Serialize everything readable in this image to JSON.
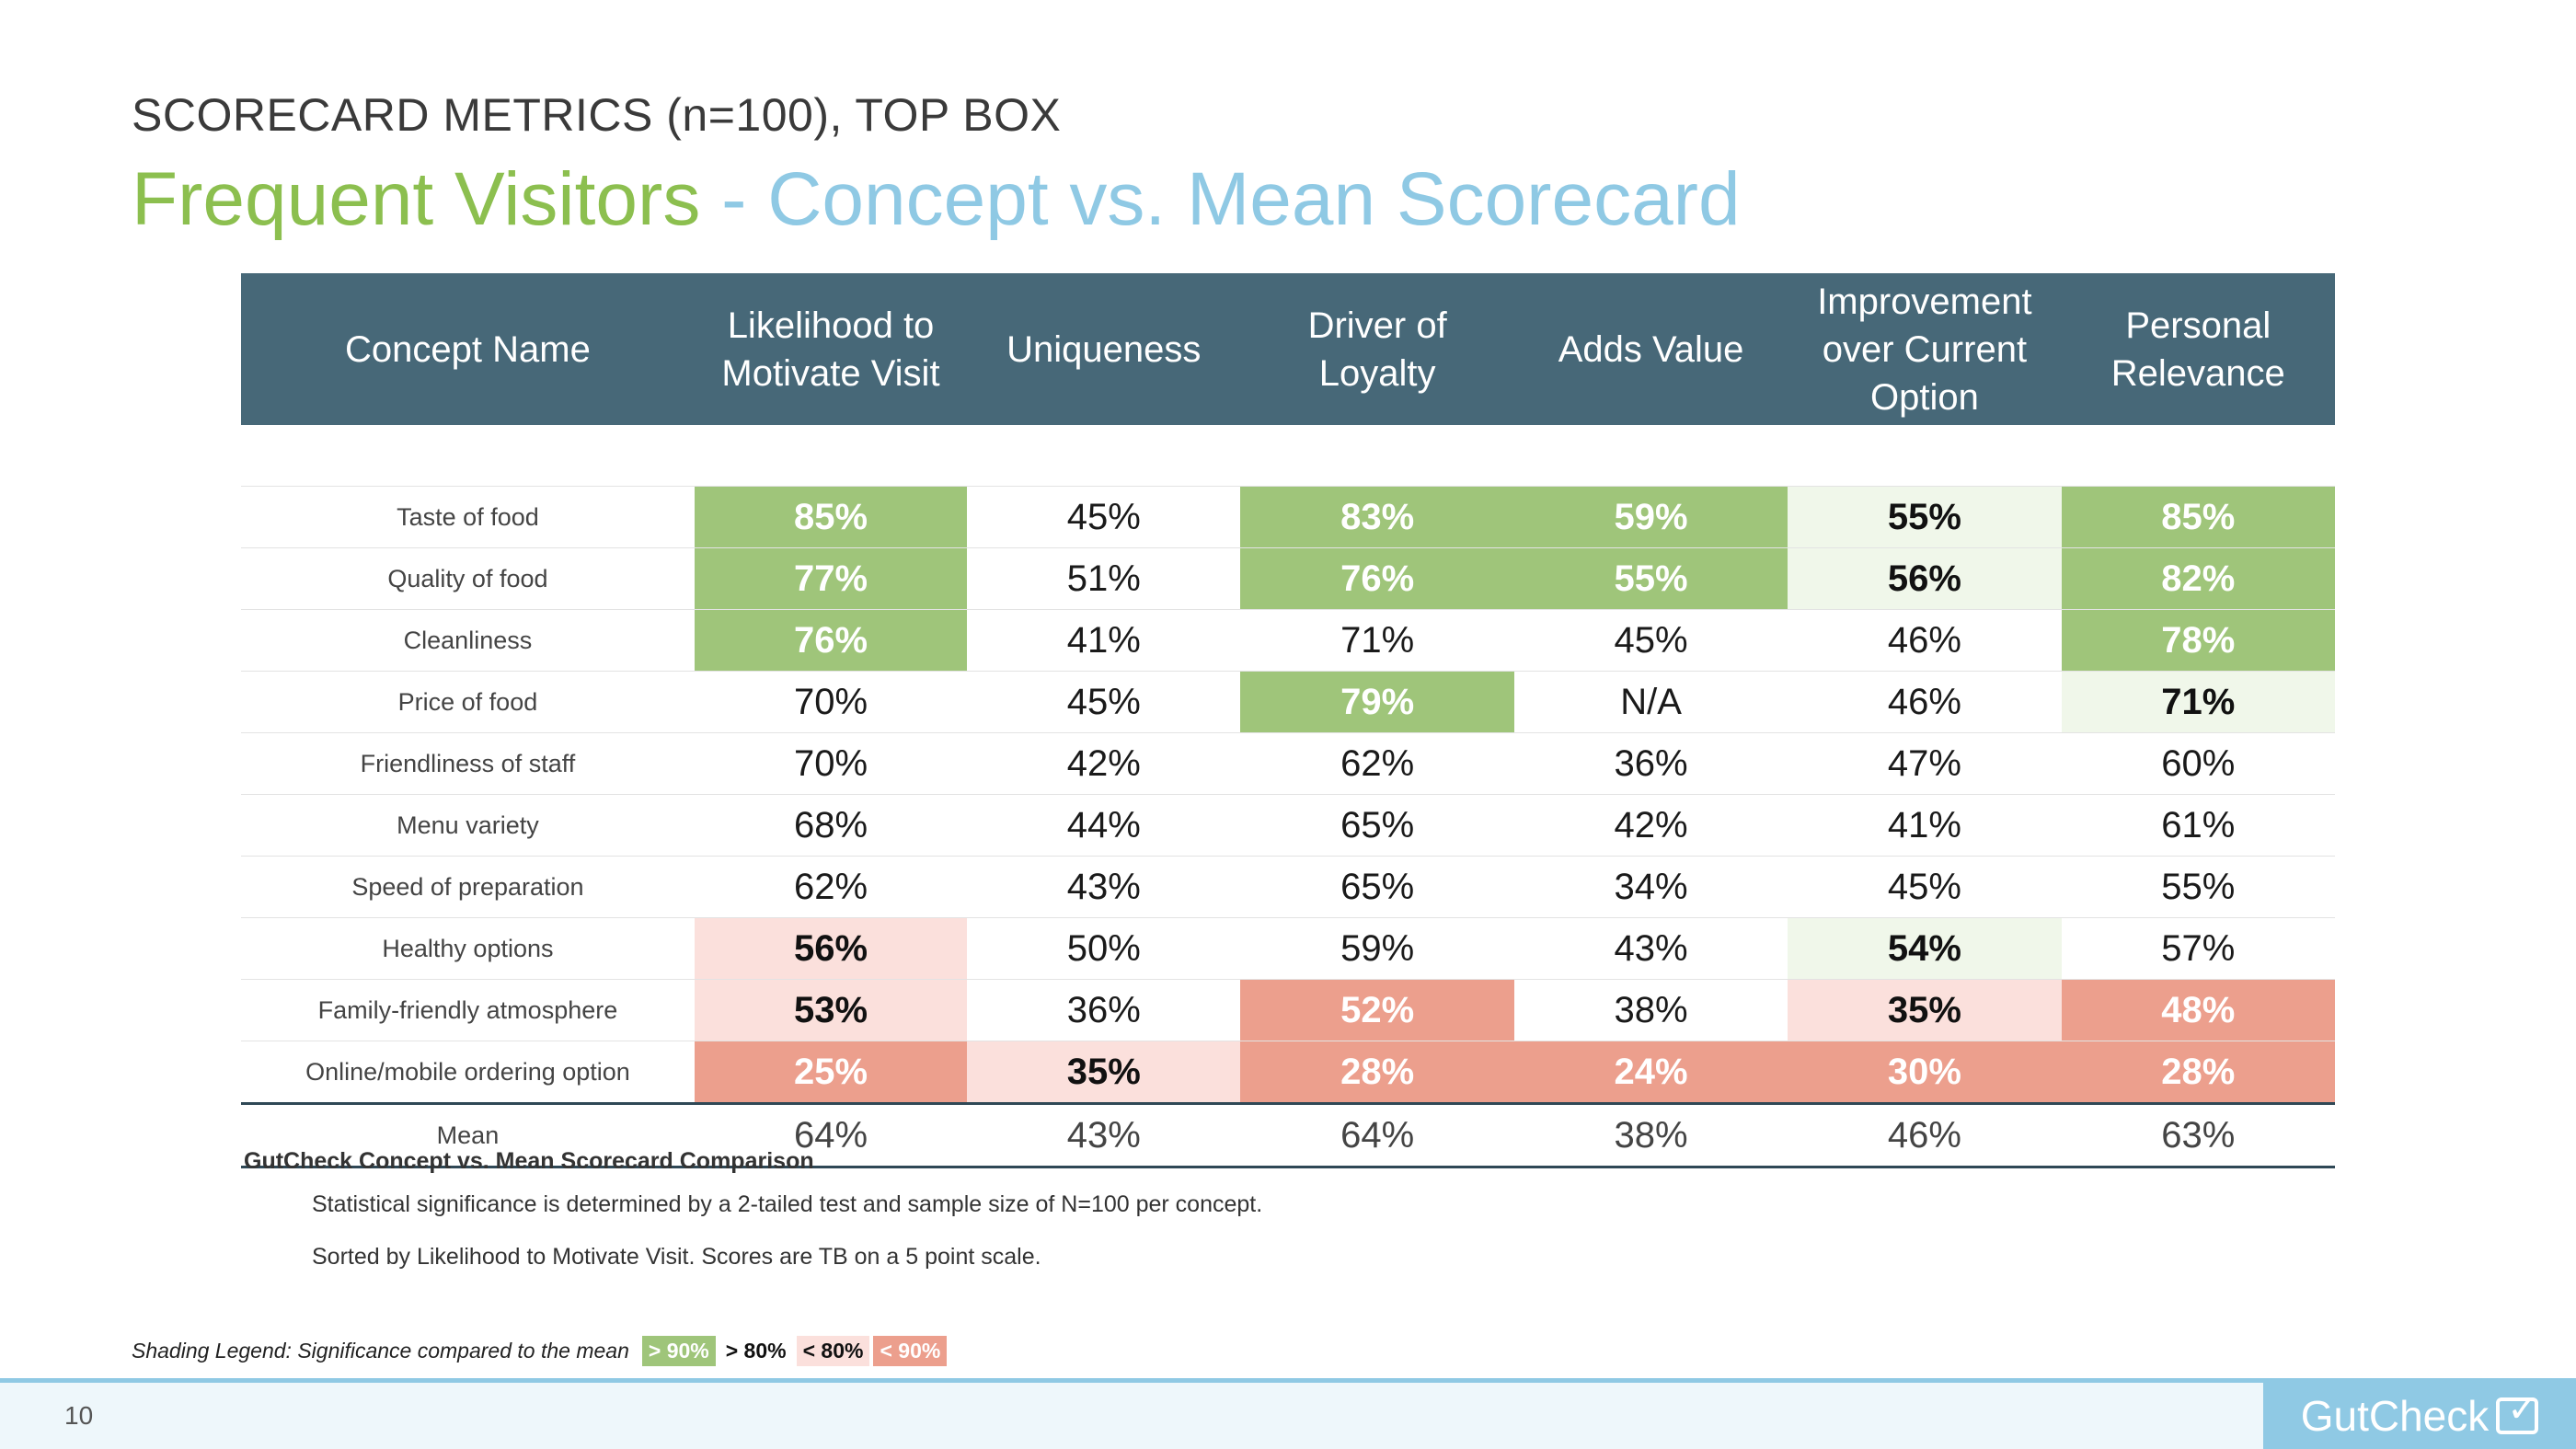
{
  "header": {
    "overline": "SCORECARD METRICS (n=100), TOP BOX",
    "title_part1": "Frequent Visitors",
    "title_sep": " - ",
    "title_part2": "Concept vs. Mean Scorecard"
  },
  "table": {
    "columns": [
      "Concept Name",
      "Likelihood to Motivate Visit",
      "Uniqueness",
      "Driver of Loyalty",
      "Adds Value",
      "Improvement over Current Option",
      "Personal Relevance"
    ],
    "rows": [
      {
        "name": "Taste of food",
        "cells": [
          {
            "v": "85%",
            "s": "sig-hi"
          },
          {
            "v": "45%",
            "s": ""
          },
          {
            "v": "83%",
            "s": "sig-hi"
          },
          {
            "v": "59%",
            "s": "sig-hi"
          },
          {
            "v": "55%",
            "s": "sig-lo"
          },
          {
            "v": "85%",
            "s": "sig-hi"
          }
        ]
      },
      {
        "name": "Quality of food",
        "cells": [
          {
            "v": "77%",
            "s": "sig-hi"
          },
          {
            "v": "51%",
            "s": ""
          },
          {
            "v": "76%",
            "s": "sig-hi"
          },
          {
            "v": "55%",
            "s": "sig-hi"
          },
          {
            "v": "56%",
            "s": "sig-lo"
          },
          {
            "v": "82%",
            "s": "sig-hi"
          }
        ]
      },
      {
        "name": "Cleanliness",
        "cells": [
          {
            "v": "76%",
            "s": "sig-hi"
          },
          {
            "v": "41%",
            "s": ""
          },
          {
            "v": "71%",
            "s": ""
          },
          {
            "v": "45%",
            "s": ""
          },
          {
            "v": "46%",
            "s": ""
          },
          {
            "v": "78%",
            "s": "sig-hi"
          }
        ]
      },
      {
        "name": "Price of food",
        "cells": [
          {
            "v": "70%",
            "s": ""
          },
          {
            "v": "45%",
            "s": ""
          },
          {
            "v": "79%",
            "s": "sig-hi"
          },
          {
            "v": "N/A",
            "s": ""
          },
          {
            "v": "46%",
            "s": ""
          },
          {
            "v": "71%",
            "s": "sig-lo"
          }
        ]
      },
      {
        "name": "Friendliness of staff",
        "cells": [
          {
            "v": "70%",
            "s": ""
          },
          {
            "v": "42%",
            "s": ""
          },
          {
            "v": "62%",
            "s": ""
          },
          {
            "v": "36%",
            "s": ""
          },
          {
            "v": "47%",
            "s": ""
          },
          {
            "v": "60%",
            "s": ""
          }
        ]
      },
      {
        "name": "Menu variety",
        "cells": [
          {
            "v": "68%",
            "s": ""
          },
          {
            "v": "44%",
            "s": ""
          },
          {
            "v": "65%",
            "s": ""
          },
          {
            "v": "42%",
            "s": ""
          },
          {
            "v": "41%",
            "s": ""
          },
          {
            "v": "61%",
            "s": ""
          }
        ]
      },
      {
        "name": "Speed of preparation",
        "cells": [
          {
            "v": "62%",
            "s": ""
          },
          {
            "v": "43%",
            "s": ""
          },
          {
            "v": "65%",
            "s": ""
          },
          {
            "v": "34%",
            "s": ""
          },
          {
            "v": "45%",
            "s": ""
          },
          {
            "v": "55%",
            "s": ""
          }
        ]
      },
      {
        "name": "Healthy options",
        "cells": [
          {
            "v": "56%",
            "s": "neg-lo"
          },
          {
            "v": "50%",
            "s": ""
          },
          {
            "v": "59%",
            "s": ""
          },
          {
            "v": "43%",
            "s": ""
          },
          {
            "v": "54%",
            "s": "sig-lo"
          },
          {
            "v": "57%",
            "s": ""
          }
        ]
      },
      {
        "name": "Family-friendly atmosphere",
        "cells": [
          {
            "v": "53%",
            "s": "neg-lo"
          },
          {
            "v": "36%",
            "s": ""
          },
          {
            "v": "52%",
            "s": "neg-hi"
          },
          {
            "v": "38%",
            "s": ""
          },
          {
            "v": "35%",
            "s": "neg-lo"
          },
          {
            "v": "48%",
            "s": "neg-hi"
          }
        ]
      },
      {
        "name": "Online/mobile ordering option",
        "cells": [
          {
            "v": "25%",
            "s": "neg-hi"
          },
          {
            "v": "35%",
            "s": "neg-lo"
          },
          {
            "v": "28%",
            "s": "neg-hi"
          },
          {
            "v": "24%",
            "s": "neg-hi"
          },
          {
            "v": "30%",
            "s": "neg-hi"
          },
          {
            "v": "28%",
            "s": "neg-hi"
          }
        ]
      }
    ],
    "mean": {
      "name": "Mean",
      "cells": [
        "64%",
        "43%",
        "64%",
        "38%",
        "46%",
        "63%"
      ]
    }
  },
  "notes": {
    "title": "GutCheck Concept vs. Mean Scorecard Comparison",
    "line1": "Statistical significance is determined by a 2-tailed test and sample size of N=100 per concept.",
    "line2": "Sorted by Likelihood to Motivate Visit.  Scores are TB on a 5 point scale."
  },
  "legend": {
    "label": "Shading Legend: Significance compared to the mean",
    "items": [
      "> 90%",
      "> 80%",
      "< 80%",
      "< 90%"
    ]
  },
  "footer": {
    "page_number": "10",
    "brand": "GutCheck"
  },
  "colors": {
    "header_bg": "#476878",
    "sig_high": "#9fc57a",
    "sig_low": "#f0f7ea",
    "neg_low": "#fbe0dc",
    "neg_high": "#ec9f8d",
    "title_green": "#8cbf4f",
    "title_blue": "#8fc9e4"
  }
}
